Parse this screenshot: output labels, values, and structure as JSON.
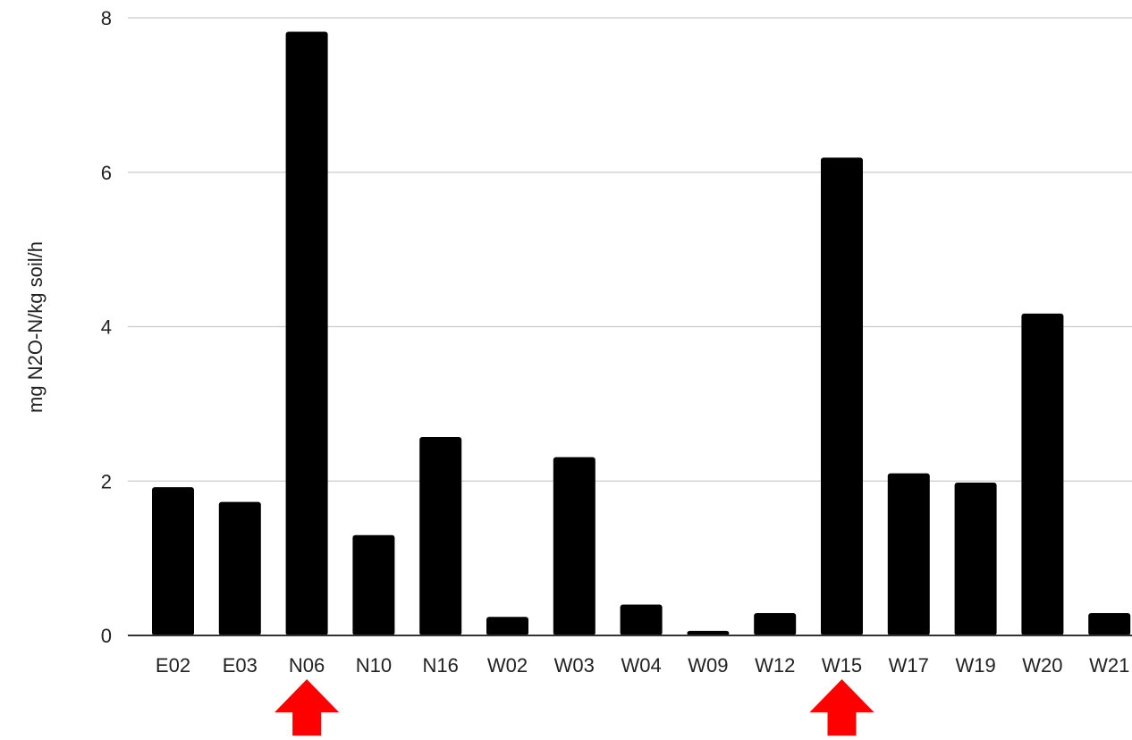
{
  "chart_data": {
    "type": "bar",
    "categories": [
      "E02",
      "E03",
      "N06",
      "N10",
      "N16",
      "W02",
      "W03",
      "W04",
      "W09",
      "W12",
      "W15",
      "W17",
      "W19",
      "W20",
      "W21"
    ],
    "values": [
      1.92,
      1.73,
      7.82,
      1.3,
      2.57,
      0.24,
      2.31,
      0.4,
      0.06,
      0.29,
      6.19,
      2.1,
      1.98,
      4.17,
      0.29
    ],
    "title": "",
    "xlabel": "",
    "ylabel": "mg N2O-N/kg soil/h",
    "ylim": [
      0,
      8
    ],
    "yticks": [
      0,
      2,
      4,
      6,
      8
    ],
    "grid": true,
    "bar_color": "#000000",
    "gridline_color": "#cccccc",
    "arrow_color": "#ff0000",
    "highlighted_categories": [
      "N06",
      "W15"
    ]
  }
}
